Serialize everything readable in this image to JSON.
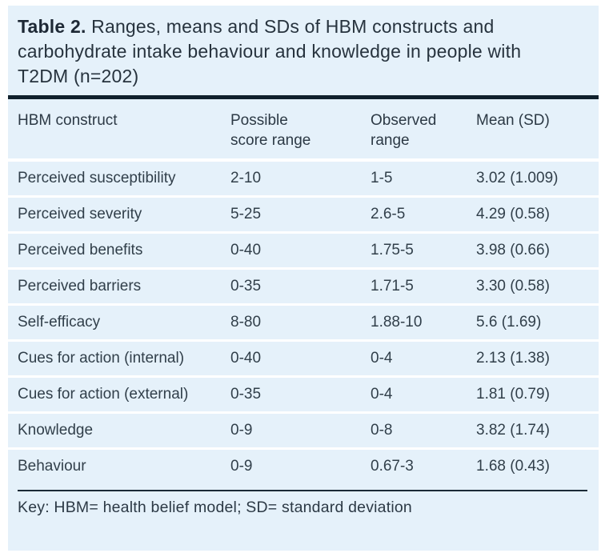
{
  "caption": {
    "label": "Table 2.",
    "text": "Ranges, means and SDs of HBM constructs and carbohydrate intake behaviour and knowledge in people with T2DM (n=202)"
  },
  "table": {
    "columns_display": [
      "HBM construct",
      "Possible\nscore range",
      "Observed\nrange",
      "Mean (SD)"
    ],
    "rows": [
      [
        "Perceived susceptibility",
        "2-10",
        "1-5",
        "3.02 (1.009)"
      ],
      [
        "Perceived severity",
        "5-25",
        "2.6-5",
        "4.29 (0.58)"
      ],
      [
        "Perceived benefits",
        "0-40",
        "1.75-5",
        "3.98 (0.66)"
      ],
      [
        "Perceived barriers",
        "0-35",
        "1.71-5",
        "3.30 (0.58)"
      ],
      [
        "Self-efficacy",
        "8-80",
        "1.88-10",
        "5.6 (1.69)"
      ],
      [
        "Cues for action (internal)",
        "0-40",
        "0-4",
        "2.13 (1.38)"
      ],
      [
        "Cues for action (external)",
        "0-35",
        "0-4",
        "1.81 (0.79)"
      ],
      [
        "Knowledge",
        "0-9",
        "0-8",
        "3.82 (1.74)"
      ],
      [
        "Behaviour",
        "0-9",
        "0.67-3",
        "1.68 (0.43)"
      ]
    ]
  },
  "key": "Key: HBM= health belief model; SD= standard deviation",
  "colors": {
    "card_background": "#e5f1fa",
    "heavy_rule": "#10202c",
    "thin_rule": "#1b2a37",
    "text": "#2c3945",
    "row_separator": "#ffffff"
  },
  "chart_data": {
    "type": "table",
    "title": "Table 2. Ranges, means and SDs of HBM constructs and carbohydrate intake behaviour and knowledge in people with T2DM (n=202)",
    "columns": [
      "HBM construct",
      "Possible score range",
      "Observed range",
      "Mean (SD)"
    ],
    "rows": [
      {
        "construct": "Perceived susceptibility",
        "possible_score_range": "2-10",
        "observed_range": "1-5",
        "mean": 3.02,
        "sd": 1.009
      },
      {
        "construct": "Perceived severity",
        "possible_score_range": "5-25",
        "observed_range": "2.6-5",
        "mean": 4.29,
        "sd": 0.58
      },
      {
        "construct": "Perceived benefits",
        "possible_score_range": "0-40",
        "observed_range": "1.75-5",
        "mean": 3.98,
        "sd": 0.66
      },
      {
        "construct": "Perceived barriers",
        "possible_score_range": "0-35",
        "observed_range": "1.71-5",
        "mean": 3.3,
        "sd": 0.58
      },
      {
        "construct": "Self-efficacy",
        "possible_score_range": "8-80",
        "observed_range": "1.88-10",
        "mean": 5.6,
        "sd": 1.69
      },
      {
        "construct": "Cues for action (internal)",
        "possible_score_range": "0-40",
        "observed_range": "0-4",
        "mean": 2.13,
        "sd": 1.38
      },
      {
        "construct": "Cues for action (external)",
        "possible_score_range": "0-35",
        "observed_range": "0-4",
        "mean": 1.81,
        "sd": 0.79
      },
      {
        "construct": "Knowledge",
        "possible_score_range": "0-9",
        "observed_range": "0-8",
        "mean": 3.82,
        "sd": 1.74
      },
      {
        "construct": "Behaviour",
        "possible_score_range": "0-9",
        "observed_range": "0.67-3",
        "mean": 1.68,
        "sd": 0.43
      }
    ],
    "note": "Key: HBM= health belief model; SD= standard deviation",
    "sample_size": 202
  }
}
